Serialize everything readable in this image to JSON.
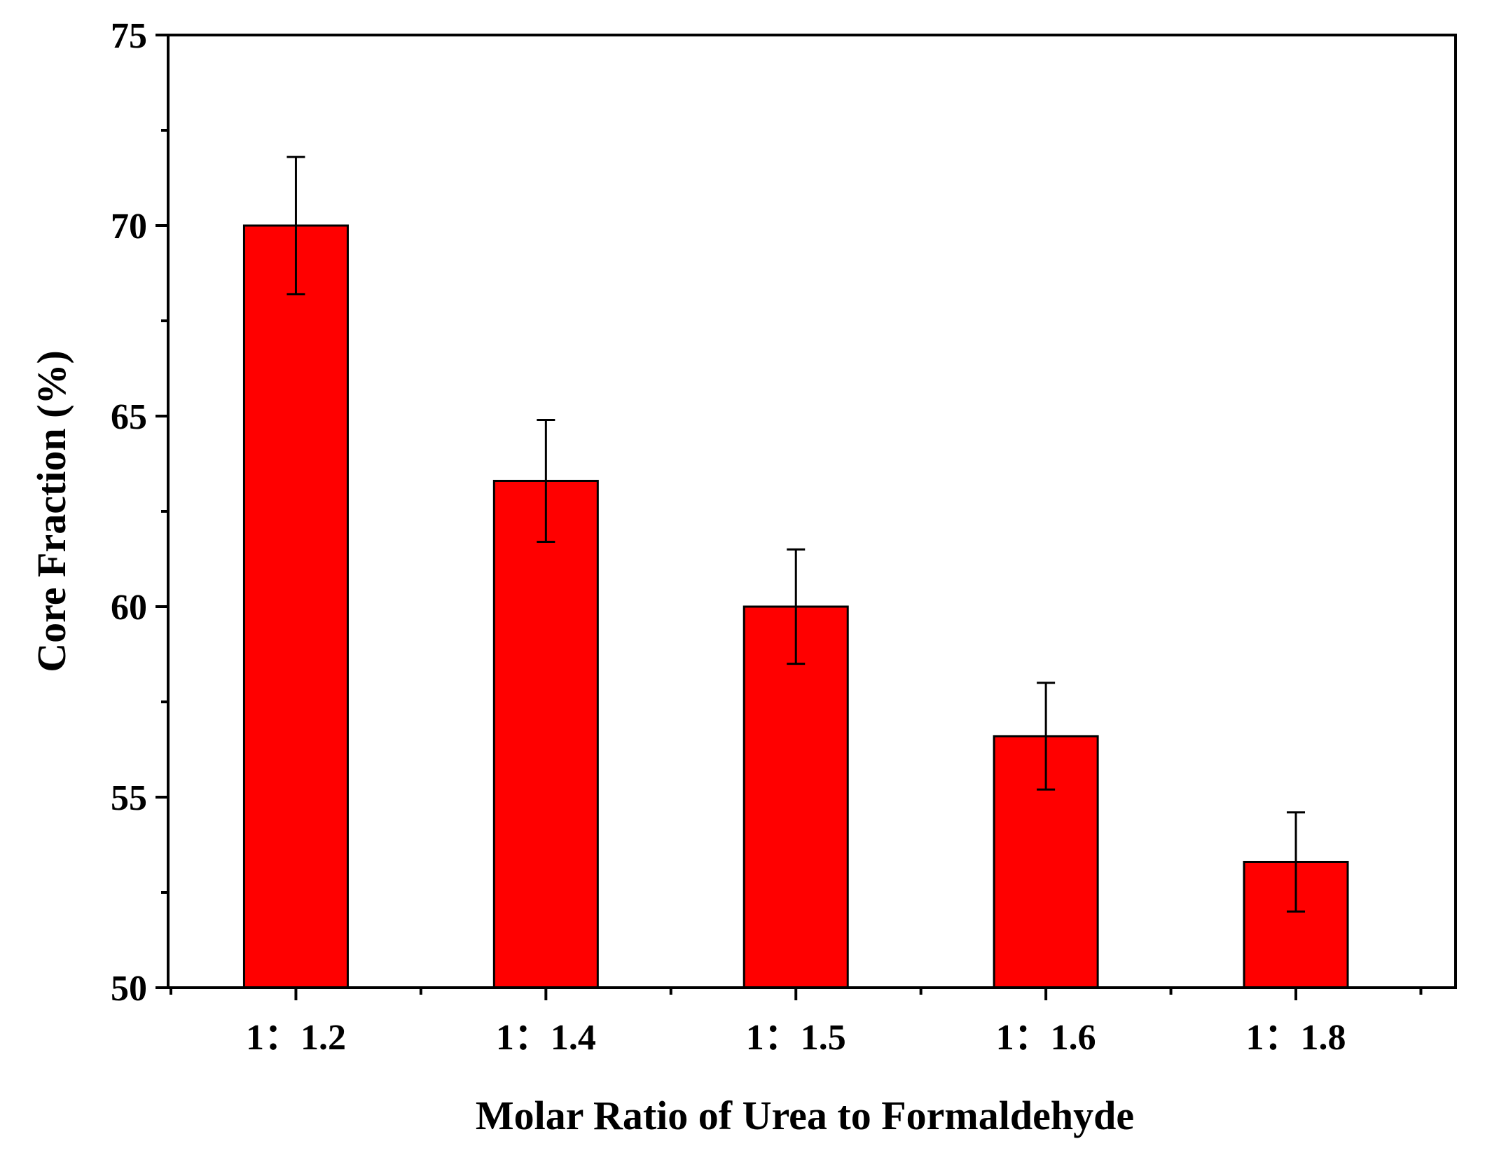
{
  "chart_data": {
    "type": "bar",
    "title": "",
    "xlabel": "Molar Ratio of Urea to Formaldehyde",
    "ylabel": "Core Fraction (%)",
    "categories": [
      "1：1.2",
      "1：1.4",
      "1：1.5",
      "1：1.6",
      "1：1.8"
    ],
    "values": [
      70.0,
      63.3,
      60.0,
      56.6,
      53.3
    ],
    "errors": [
      1.8,
      1.6,
      1.5,
      1.4,
      1.3
    ],
    "ylim": [
      50,
      75
    ],
    "yticks": [
      "50",
      "55",
      "60",
      "65",
      "70",
      "75"
    ],
    "grid": false,
    "legend": "none",
    "colors": {
      "bar_fill": "#ff0000",
      "bar_stroke": "#000000",
      "axis": "#000000"
    }
  }
}
